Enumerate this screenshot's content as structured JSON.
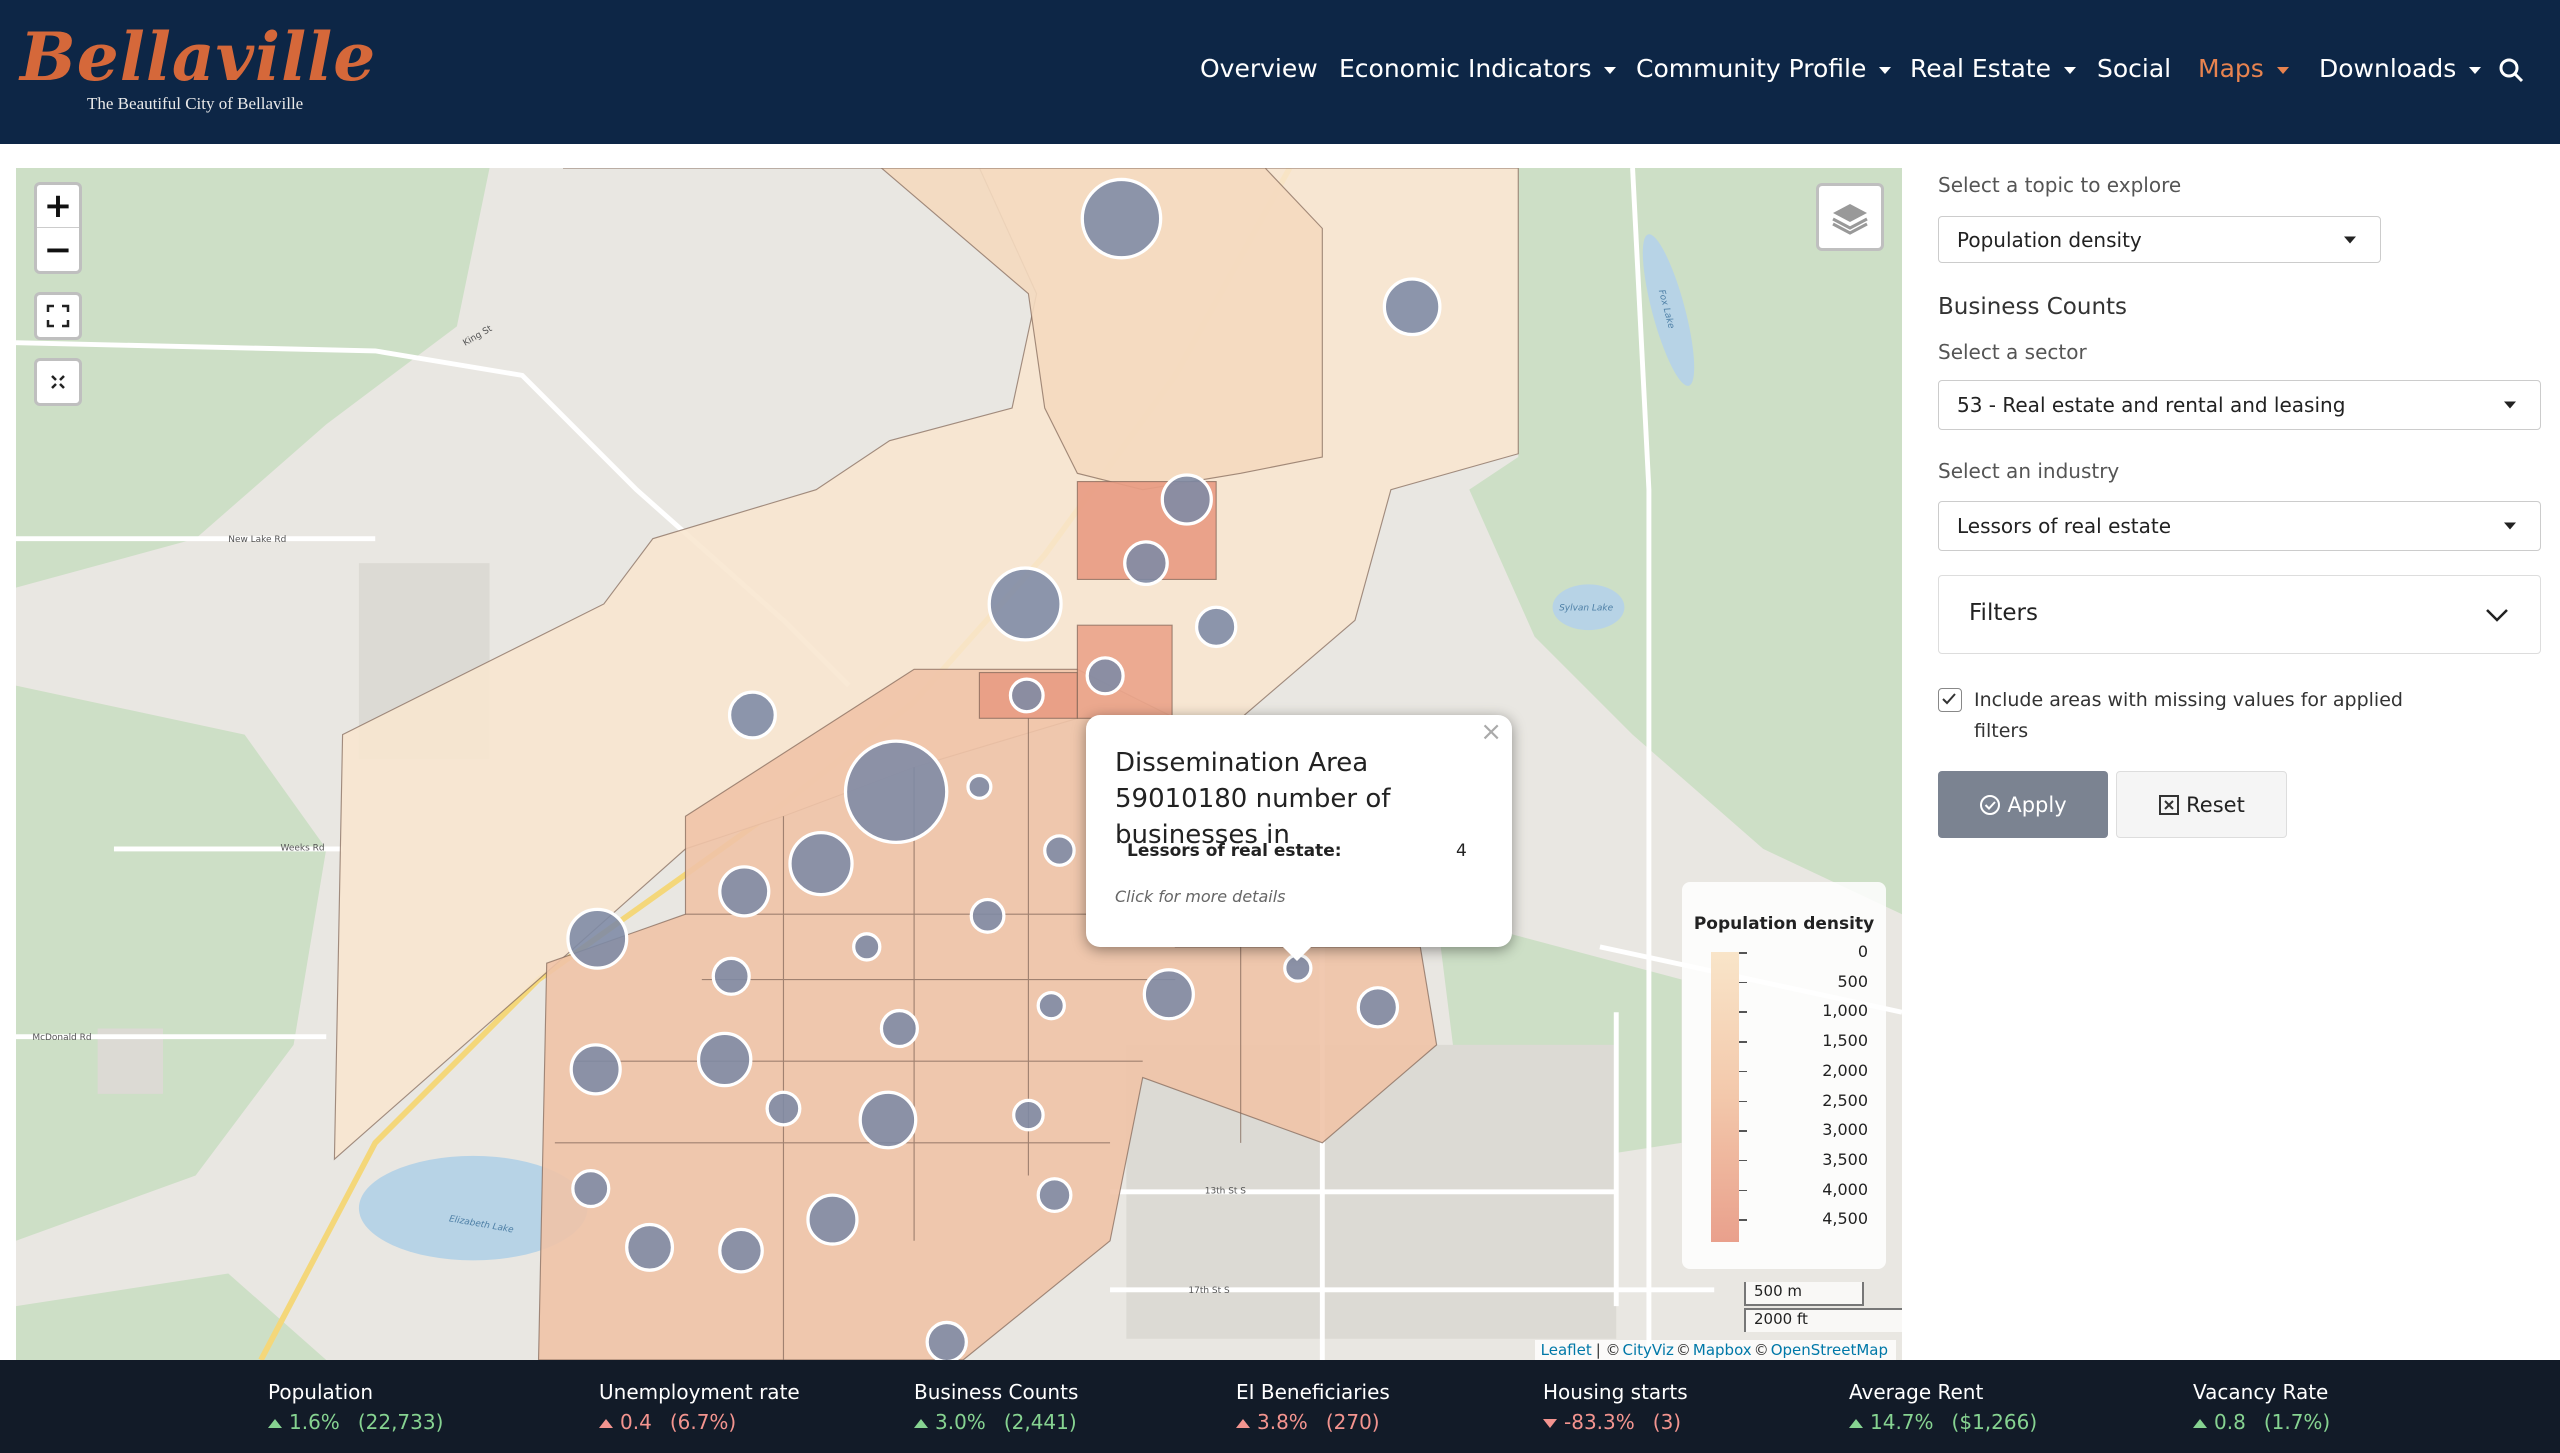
{
  "header": {
    "logo": "Bellaville",
    "tagline": "The Beautiful City of Bellaville",
    "nav": [
      {
        "label": "Overview",
        "dropdown": false,
        "active": false
      },
      {
        "label": "Economic Indicators",
        "dropdown": true,
        "active": false
      },
      {
        "label": "Community Profile",
        "dropdown": true,
        "active": false
      },
      {
        "label": "Real Estate",
        "dropdown": true,
        "active": false
      },
      {
        "label": "Social",
        "dropdown": false,
        "active": false
      },
      {
        "label": "Maps",
        "dropdown": true,
        "active": true
      },
      {
        "label": "Downloads",
        "dropdown": true,
        "active": false
      }
    ]
  },
  "map": {
    "zoom_in": "+",
    "zoom_out": "−",
    "labels": [
      "King St",
      "New Lake Rd",
      "Weeks Rd",
      "McDonald Rd",
      "Elizabeth Lake",
      "Sylvan Lake",
      "Fox Lake",
      "13th St S",
      "17th St S"
    ],
    "popup": {
      "close": "×",
      "title": "Dissemination Area 59010180 number of businesses in",
      "rows": [
        {
          "label": "Lessors of real estate:",
          "value": 4
        }
      ],
      "link": "Click for more details"
    },
    "legend": {
      "title": "Population density",
      "labels": [
        "0",
        "500",
        "1,000",
        "1,500",
        "2,000",
        "2,500",
        "3,000",
        "3,500",
        "4,000",
        "4,500"
      ]
    },
    "scale": [
      "500 m",
      "2000 ft"
    ],
    "attribution": [
      "Leaflet",
      "| ©",
      "CityViz",
      "©",
      "Mapbox",
      "©",
      "OpenStreetMap"
    ]
  },
  "sidebar": {
    "topic_label": "Select a topic to explore",
    "topic": "Population density",
    "section": "Business Counts",
    "sector_label": "Select a sector",
    "sector": "53 - Real estate and rental and leasing",
    "industry_label": "Select an industry",
    "industry": "Lessors of real estate",
    "filters": "Filters",
    "missing_checkbox": {
      "label": "Include areas with missing values for applied filters",
      "checked": true
    },
    "apply": "Apply",
    "reset": "Reset"
  },
  "footer": {
    "stats": [
      {
        "name": "Population",
        "change": "1.6%",
        "count": "(22,733)",
        "direction": "up",
        "tone": "good"
      },
      {
        "name": "Unemployment rate",
        "change": "0.4",
        "count": "(6.7%)",
        "direction": "up",
        "tone": "bad"
      },
      {
        "name": "Business Counts",
        "change": "3.0%",
        "count": "(2,441)",
        "direction": "up",
        "tone": "good"
      },
      {
        "name": "EI Beneficiaries",
        "change": "3.8%",
        "count": "(270)",
        "direction": "up",
        "tone": "bad"
      },
      {
        "name": "Housing starts",
        "change": "-83.3%",
        "count": "(3)",
        "direction": "down",
        "tone": "bad"
      },
      {
        "name": "Average Rent",
        "change": "14.7%",
        "count": "($1,266)",
        "direction": "up",
        "tone": "good"
      },
      {
        "name": "Vacancy Rate",
        "change": "0.8",
        "count": "(1.7%)",
        "direction": "up",
        "tone": "good"
      }
    ]
  }
}
